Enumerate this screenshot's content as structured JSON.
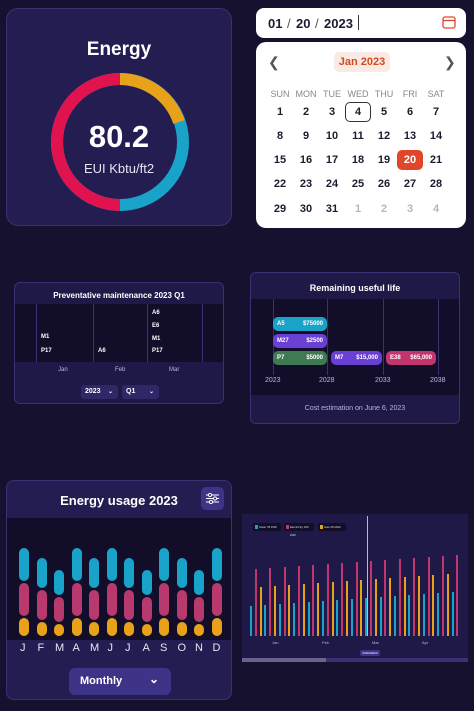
{
  "energy": {
    "title": "Energy",
    "value": "80.2",
    "unit": "EUI Kbtu/ft2",
    "colors": [
      "#e0134f",
      "#e8a21a",
      "#1aa3c9"
    ]
  },
  "date_input": {
    "month": "01",
    "day": "20",
    "year": "2023",
    "sep": "/",
    "icon": "calendar-icon"
  },
  "calendar": {
    "month_label": "Jan 2023",
    "prev_icon": "chevron-left-icon",
    "next_icon": "chevron-right-icon",
    "weekdays": [
      "SUN",
      "MON",
      "TUE",
      "WED",
      "THU",
      "FRI",
      "SAT"
    ],
    "weeks": [
      [
        "1",
        "2",
        "3",
        "4",
        "5",
        "6",
        "7"
      ],
      [
        "8",
        "9",
        "10",
        "11",
        "12",
        "13",
        "14"
      ],
      [
        "15",
        "16",
        "17",
        "18",
        "19",
        "20",
        "21"
      ],
      [
        "22",
        "23",
        "24",
        "25",
        "26",
        "27",
        "28"
      ],
      [
        "29",
        "30",
        "31",
        "1",
        "2",
        "3",
        "4"
      ]
    ],
    "today": "4",
    "selected": "20"
  },
  "maintenance": {
    "title": "Preventative maintenance 2023 Q1",
    "months": [
      "Jan",
      "Feb",
      "Mar"
    ],
    "tasks": [
      {
        "label": "M1",
        "color": "#6a3fd4"
      },
      {
        "label": "P17",
        "color": "#3f7a52"
      },
      {
        "label": "A6",
        "color": "#1aa3c9"
      },
      {
        "label": "A6",
        "color": "#1aa3c9"
      },
      {
        "label": "E6",
        "color": "#c2366e"
      },
      {
        "label": "M1",
        "color": "#6a3fd4"
      },
      {
        "label": "P17",
        "color": "#3f7a52"
      }
    ],
    "year_select": "2023",
    "quarter_select": "Q1"
  },
  "useful_life": {
    "title": "Remaining useful life",
    "years": [
      "2023",
      "2028",
      "2033",
      "2038"
    ],
    "items": [
      {
        "code": "A5",
        "amount": "$75000",
        "color": "#1aa3c9"
      },
      {
        "code": "M27",
        "amount": "$2500",
        "color": "#6a3fd4"
      },
      {
        "code": "P7",
        "amount": "$5000",
        "color": "#3f7a52"
      },
      {
        "code": "M7",
        "amount": "$15,000",
        "color": "#6a3fd4"
      },
      {
        "code": "E38",
        "amount": "$65,000",
        "color": "#c2366e"
      }
    ],
    "footer": "Cost estimation on June 6, 2023"
  },
  "usage": {
    "title": "Energy usage 2023",
    "months": [
      "J",
      "F",
      "M",
      "A",
      "M",
      "J",
      "J",
      "A",
      "S",
      "O",
      "N",
      "D"
    ],
    "period_select": "Monthly",
    "filter_icon": "sliders-icon",
    "chevron_icon": "chevron-down-icon",
    "colors": {
      "top": "#1aa3c9",
      "mid": "#b8396d",
      "bottom": "#e8a21a"
    }
  },
  "daily": {
    "legend": [
      {
        "label": "Solar 78 kWh",
        "color": "#1aa3c9"
      },
      {
        "label": "Electricity 102 kWh",
        "color": "#c2366e"
      },
      {
        "label": "Gas 26 Mwh",
        "color": "#e8a21a"
      }
    ],
    "months": [
      "Jan",
      "Feb",
      "Mar",
      "Apr"
    ],
    "marker": "03/03/2023"
  }
}
